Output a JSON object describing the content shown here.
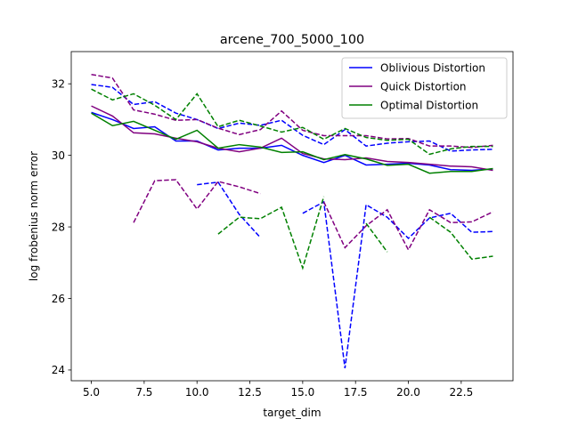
{
  "chart_data": {
    "type": "line",
    "title": "arcene_700_5000_100",
    "xlabel": "target_dim",
    "ylabel": "log frobenius norm error",
    "xlim": [
      4.05,
      24.95
    ],
    "ylim": [
      23.7,
      32.9
    ],
    "grid": false,
    "legend_position": "top-right",
    "x_ticks": [
      5.0,
      7.5,
      10.0,
      12.5,
      15.0,
      17.5,
      20.0,
      22.5
    ],
    "x_tick_labels": [
      "5.0",
      "7.5",
      "10.0",
      "12.5",
      "15.0",
      "17.5",
      "20.0",
      "22.5"
    ],
    "y_ticks": [
      24,
      26,
      28,
      30,
      32
    ],
    "y_tick_labels": [
      "24",
      "26",
      "28",
      "30",
      "32"
    ],
    "x": [
      5,
      6,
      7,
      8,
      9,
      10,
      11,
      12,
      13,
      14,
      15,
      16,
      17,
      18,
      19,
      20,
      21,
      22,
      23,
      24
    ],
    "series": [
      {
        "name": "Oblivious Distortion",
        "color": "#0000ff",
        "mean": [
          31.2,
          31.0,
          30.75,
          30.8,
          30.4,
          30.4,
          30.15,
          30.2,
          30.2,
          30.28,
          30.0,
          29.8,
          30.0,
          29.73,
          29.75,
          29.78,
          29.73,
          29.6,
          29.58,
          29.62
        ],
        "upper": [
          31.98,
          31.9,
          31.42,
          31.5,
          31.18,
          31.0,
          30.75,
          30.9,
          30.84,
          30.98,
          30.56,
          30.3,
          30.72,
          30.26,
          30.34,
          30.38,
          30.4,
          30.12,
          30.15,
          30.17
        ],
        "lower": [
          null,
          null,
          null,
          null,
          null,
          29.18,
          29.25,
          28.35,
          27.7,
          null,
          28.38,
          28.7,
          24.05,
          28.62,
          28.27,
          27.68,
          28.25,
          28.38,
          27.85,
          27.87
        ]
      },
      {
        "name": "Quick Distortion",
        "color": "#800080",
        "mean": [
          31.38,
          31.1,
          30.63,
          30.6,
          30.48,
          30.38,
          30.2,
          30.1,
          30.2,
          30.48,
          30.05,
          29.9,
          29.88,
          29.93,
          29.83,
          29.8,
          29.75,
          29.7,
          29.68,
          29.58
        ],
        "upper": [
          32.26,
          32.16,
          31.27,
          31.15,
          30.98,
          31.0,
          30.76,
          30.58,
          30.72,
          31.24,
          30.7,
          30.55,
          30.55,
          30.55,
          30.46,
          30.47,
          30.26,
          30.26,
          30.22,
          30.28
        ],
        "lower": [
          null,
          null,
          28.12,
          29.29,
          29.32,
          28.5,
          29.27,
          29.12,
          28.93,
          null,
          null,
          28.7,
          27.42,
          28.03,
          28.48,
          27.36,
          28.48,
          28.12,
          28.14,
          28.42
        ]
      },
      {
        "name": "Optimal Distortion",
        "color": "#008000",
        "mean": [
          31.18,
          30.83,
          30.95,
          30.7,
          30.45,
          30.7,
          30.2,
          30.3,
          30.23,
          30.08,
          30.1,
          29.88,
          30.02,
          29.9,
          29.72,
          29.75,
          29.5,
          29.55,
          29.55,
          29.63
        ],
        "upper": [
          31.85,
          31.55,
          31.72,
          31.4,
          31.0,
          31.72,
          30.8,
          30.98,
          30.82,
          30.65,
          30.78,
          30.45,
          30.75,
          30.5,
          30.42,
          30.45,
          30.03,
          30.18,
          30.25,
          30.25
        ],
        "lower": [
          null,
          null,
          null,
          null,
          null,
          null,
          27.8,
          28.27,
          28.23,
          28.55,
          26.85,
          28.85,
          null,
          28.1,
          27.3,
          null,
          28.27,
          27.85,
          27.1,
          27.18
        ]
      }
    ]
  }
}
